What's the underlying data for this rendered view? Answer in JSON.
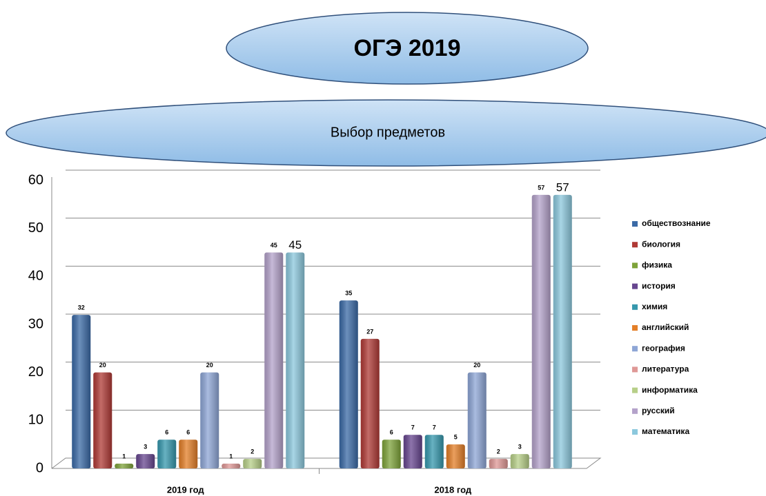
{
  "chart_data": {
    "type": "bar",
    "title": "ОГЭ 2019",
    "subtitle": "Выбор предметов",
    "categories": [
      "2019 год",
      "2018 год"
    ],
    "series": [
      {
        "name": "обществознание",
        "color": "#3b6aa6",
        "values": [
          32,
          35
        ]
      },
      {
        "name": "биология",
        "color": "#b03a36",
        "values": [
          20,
          27
        ]
      },
      {
        "name": "физика",
        "color": "#7ea33a",
        "values": [
          1,
          6
        ]
      },
      {
        "name": "история",
        "color": "#67468f",
        "values": [
          3,
          7
        ]
      },
      {
        "name": "химия",
        "color": "#3698ad",
        "values": [
          6,
          7
        ]
      },
      {
        "name": "английский",
        "color": "#e47f28",
        "values": [
          6,
          5
        ]
      },
      {
        "name": "география",
        "color": "#8ea6d6",
        "values": [
          20,
          20
        ]
      },
      {
        "name": "литература",
        "color": "#df9896",
        "values": [
          1,
          2
        ]
      },
      {
        "name": "информатика",
        "color": "#b7cf88",
        "values": [
          2,
          3
        ]
      },
      {
        "name": "русский",
        "color": "#b4a2ca",
        "values": [
          45,
          57
        ]
      },
      {
        "name": "математика",
        "color": "#8cc8dd",
        "values": [
          45,
          57
        ]
      }
    ],
    "ylim": [
      0,
      60
    ],
    "yticks": [
      0,
      10,
      20,
      30,
      40,
      50,
      60
    ],
    "grid": true,
    "legend": "right"
  }
}
